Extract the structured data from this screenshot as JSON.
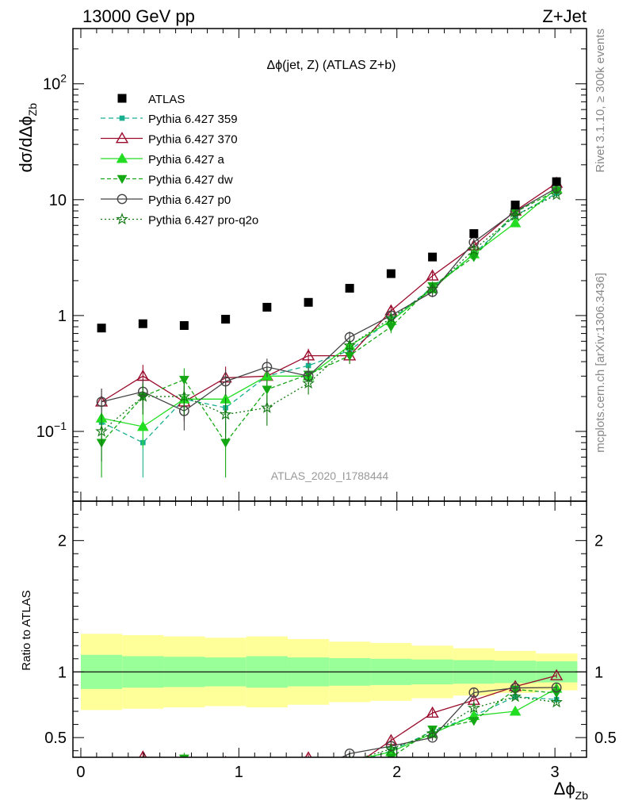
{
  "header": {
    "left": "13000 GeV pp",
    "right": "Z+Jet"
  },
  "side_labels": {
    "rivet": "Rivet 3.1.10, ≥ 300k events",
    "mcplots": "mcplots.cern.ch [arXiv:1306.3436]"
  },
  "chart_data": [
    {
      "type": "scatter",
      "title": "Δϕ(jet, Z) (ATLAS Z+b)",
      "watermark": "ATLAS_2020_I1788444",
      "ylabel": "dσ/dΔϕ",
      "ylabel_sub": "Zb",
      "yscale": "log",
      "xlim": [
        -0.05,
        3.2
      ],
      "ylim": [
        0.025,
        300
      ],
      "yticks": [
        {
          "v": 0.1,
          "base": "10",
          "exp": "−1"
        },
        {
          "v": 1,
          "base": "1",
          "exp": ""
        },
        {
          "v": 10,
          "base": "10",
          "exp": ""
        },
        {
          "v": 100,
          "base": "10",
          "exp": "2"
        }
      ],
      "x": [
        0.131,
        0.393,
        0.654,
        0.916,
        1.178,
        1.44,
        1.701,
        1.963,
        2.225,
        2.487,
        2.749,
        3.01
      ],
      "data": {
        "name": "ATLAS",
        "values": [
          0.78,
          0.85,
          0.82,
          0.93,
          1.18,
          1.3,
          1.72,
          2.3,
          3.2,
          5.1,
          9.0,
          14.3
        ]
      },
      "series": [
        {
          "name": "Pythia 6.427 359",
          "color": "#19b08f",
          "marker": "square-small",
          "dash": "6,4",
          "values": [
            0.12,
            0.08,
            0.19,
            0.16,
            0.3,
            0.37,
            0.5,
            0.92,
            1.75,
            3.4,
            7.3,
            11.3
          ],
          "err": [
            0.35,
            0.5,
            0.3,
            0.4,
            0.2,
            0.15,
            0.12,
            0.1,
            0.1,
            0.07,
            0.05,
            0.04
          ]
        },
        {
          "name": "Pythia 6.427 370",
          "color": "#9a0a2b",
          "marker": "triangle-open",
          "dash": "",
          "values": [
            0.18,
            0.3,
            0.18,
            0.29,
            0.3,
            0.45,
            0.45,
            1.1,
            2.2,
            4.0,
            8.0,
            13.9
          ],
          "err": [
            0.3,
            0.25,
            0.32,
            0.25,
            0.2,
            0.15,
            0.15,
            0.1,
            0.08,
            0.07,
            0.05,
            0.04
          ]
        },
        {
          "name": "Pythia 6.427 a",
          "color": "#22dd22",
          "marker": "triangle",
          "dash": "",
          "values": [
            0.13,
            0.11,
            0.19,
            0.19,
            0.3,
            0.3,
            0.55,
            0.9,
            1.7,
            3.4,
            6.3,
            12.5
          ],
          "err": [
            0.35,
            0.35,
            0.3,
            0.3,
            0.2,
            0.18,
            0.12,
            0.1,
            0.1,
            0.07,
            0.05,
            0.04
          ]
        },
        {
          "name": "Pythia 6.427 dw",
          "color": "#14a814",
          "marker": "triangle-down",
          "dash": "5,3",
          "values": [
            0.08,
            0.2,
            0.28,
            0.08,
            0.23,
            0.31,
            0.45,
            0.8,
            1.8,
            3.2,
            7.8,
            12.0
          ],
          "err": [
            0.5,
            0.3,
            0.25,
            0.5,
            0.22,
            0.18,
            0.15,
            0.12,
            0.1,
            0.07,
            0.05,
            0.04
          ]
        },
        {
          "name": "Pythia 6.427 p0",
          "color": "#444444",
          "marker": "circle-open",
          "dash": "",
          "values": [
            0.18,
            0.22,
            0.15,
            0.27,
            0.36,
            0.3,
            0.65,
            1.0,
            1.6,
            4.3,
            7.9,
            12.6
          ],
          "err": [
            0.3,
            0.28,
            0.32,
            0.25,
            0.18,
            0.18,
            0.12,
            0.1,
            0.1,
            0.07,
            0.05,
            0.04
          ]
        },
        {
          "name": "Pythia 6.427 pro-q2o",
          "color": "#117711",
          "marker": "star",
          "dash": "2,3",
          "values": [
            0.1,
            0.2,
            0.2,
            0.14,
            0.16,
            0.26,
            0.55,
            0.95,
            1.7,
            3.7,
            7.3,
            11.0
          ],
          "err": [
            0.45,
            0.3,
            0.3,
            0.4,
            0.3,
            0.2,
            0.12,
            0.1,
            0.1,
            0.07,
            0.05,
            0.04
          ]
        }
      ]
    },
    {
      "type": "line",
      "ylabel": "Ratio to ATLAS",
      "xlabel": "Δϕ",
      "xlabel_sub": "Zb",
      "ylim": [
        0.35,
        2.3
      ],
      "yticks": [
        0.5,
        1,
        2
      ],
      "ytick_labels": [
        "0.5",
        "1",
        "2"
      ],
      "xticks": [
        0,
        1,
        2,
        3
      ],
      "xtick_labels": [
        "0",
        "1",
        "2",
        "3"
      ],
      "bin_edges": [
        0.0,
        0.262,
        0.524,
        0.785,
        1.047,
        1.309,
        1.571,
        1.833,
        2.094,
        2.356,
        2.618,
        2.88,
        3.142
      ],
      "band_inner": [
        0.13,
        0.12,
        0.115,
        0.11,
        0.12,
        0.11,
        0.105,
        0.1,
        0.095,
        0.09,
        0.085,
        0.08
      ],
      "band_outer": [
        0.29,
        0.28,
        0.27,
        0.26,
        0.27,
        0.25,
        0.23,
        0.22,
        0.2,
        0.18,
        0.16,
        0.14
      ],
      "reference": 1
    }
  ]
}
